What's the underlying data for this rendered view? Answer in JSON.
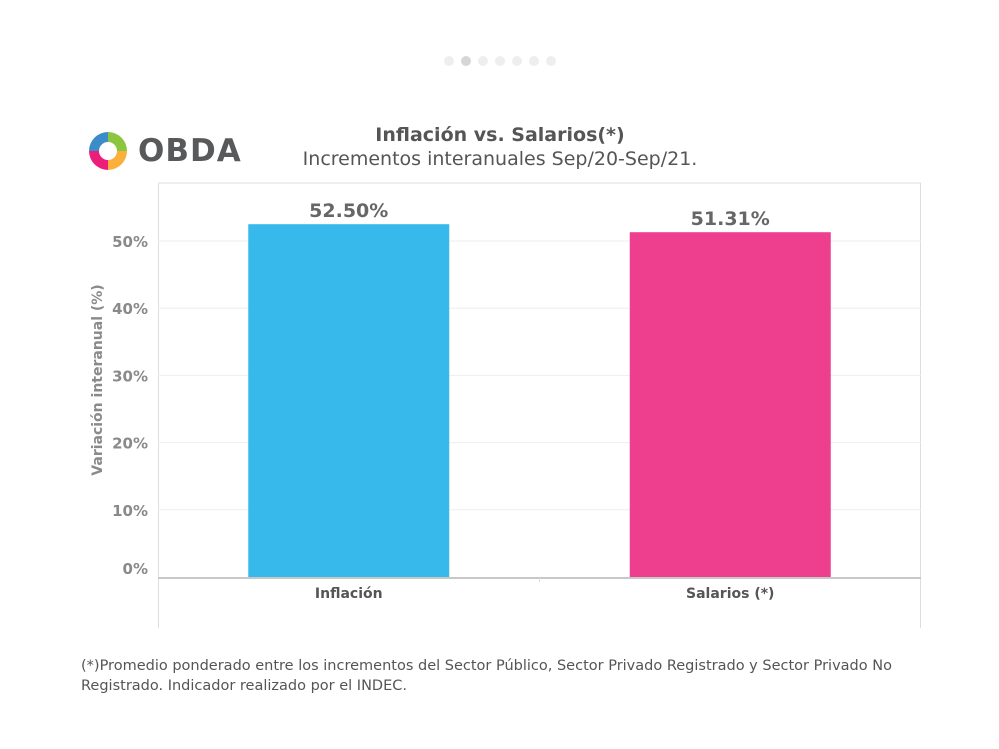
{
  "carousel": {
    "count": 7,
    "active_index": 1
  },
  "logo": {
    "text": "OBDA",
    "colors": [
      "#8cc63f",
      "#fbb03b",
      "#ed1e79",
      "#3a8dc8"
    ]
  },
  "chart_data": {
    "type": "bar",
    "title": "Inflación vs. Salarios(*)",
    "subtitle": "Incrementos interanuales Sep/20-Sep/21.",
    "ylabel": "Variación interanual (%)",
    "xlabel": "",
    "categories": [
      "Inflación",
      "Salarios (*)"
    ],
    "values": [
      52.5,
      51.31
    ],
    "data_labels": [
      "52.50%",
      "51.31%"
    ],
    "colors": [
      "#38b9eb",
      "#ee3e8e"
    ],
    "ylim": [
      0,
      58
    ],
    "yticks": [
      0,
      10,
      20,
      30,
      40,
      50
    ],
    "ytick_labels": [
      "0%",
      "10%",
      "20%",
      "30%",
      "40%",
      "50%"
    ],
    "grid": true,
    "legend": "none"
  },
  "footnote": "(*)Promedio ponderado entre los incrementos del Sector Público, Sector Privado Registrado y Sector Privado No Registrado. Indicador realizado por el INDEC."
}
